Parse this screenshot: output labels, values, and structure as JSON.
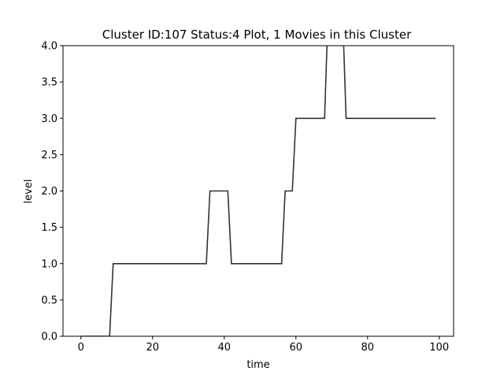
{
  "chart_data": {
    "type": "line",
    "title": "Cluster ID:107 Status:4 Plot, 1 Movies in this Cluster",
    "xlabel": "time",
    "ylabel": "level",
    "xlim": [
      -5,
      104
    ],
    "ylim": [
      0,
      4.0
    ],
    "x_ticks": [
      0,
      20,
      40,
      60,
      80,
      100
    ],
    "y_ticks": [
      0.0,
      0.5,
      1.0,
      1.5,
      2.0,
      2.5,
      3.0,
      3.5,
      4.0
    ],
    "x_tick_labels": [
      "0",
      "20",
      "40",
      "60",
      "80",
      "100"
    ],
    "y_tick_labels": [
      "0.0",
      "0.5",
      "1.0",
      "1.5",
      "2.0",
      "2.5",
      "3.0",
      "3.5",
      "4.0"
    ],
    "grid": false,
    "line_color": "#333333",
    "series": [
      {
        "x": [
          0,
          8,
          9,
          35,
          36,
          41,
          42,
          56,
          57,
          59,
          60,
          68,
          69,
          73,
          74,
          99
        ],
        "y": [
          0,
          0,
          1,
          1,
          2,
          2,
          1,
          1,
          2,
          2,
          3,
          3,
          4.5,
          4.5,
          3,
          3
        ]
      }
    ]
  }
}
